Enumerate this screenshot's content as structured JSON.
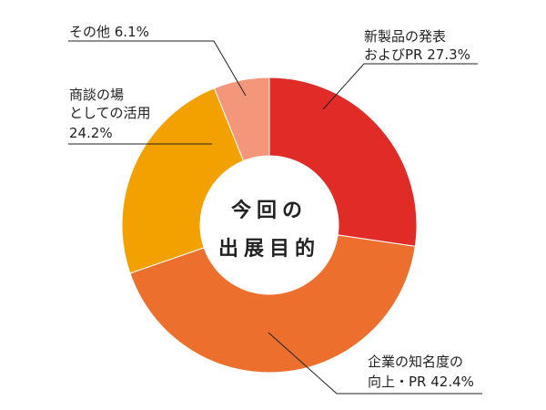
{
  "chart_data": {
    "type": "pie",
    "donut": true,
    "center_title": [
      "今回の",
      "出展目的"
    ],
    "slices": [
      {
        "label": [
          "新製品の発表",
          "およびPR 27.3%"
        ],
        "value": 27.3,
        "color": "#E02B27"
      },
      {
        "label": [
          "企業の知名度の",
          "向上・PR 42.4%"
        ],
        "value": 42.4,
        "color": "#EC6F2D"
      },
      {
        "label": [
          "商談の場",
          "としての活用",
          "24.2%"
        ],
        "value": 24.2,
        "color": "#F2A100"
      },
      {
        "label": [
          "その他 6.1%"
        ],
        "value": 6.1,
        "color": "#F39679"
      }
    ]
  }
}
